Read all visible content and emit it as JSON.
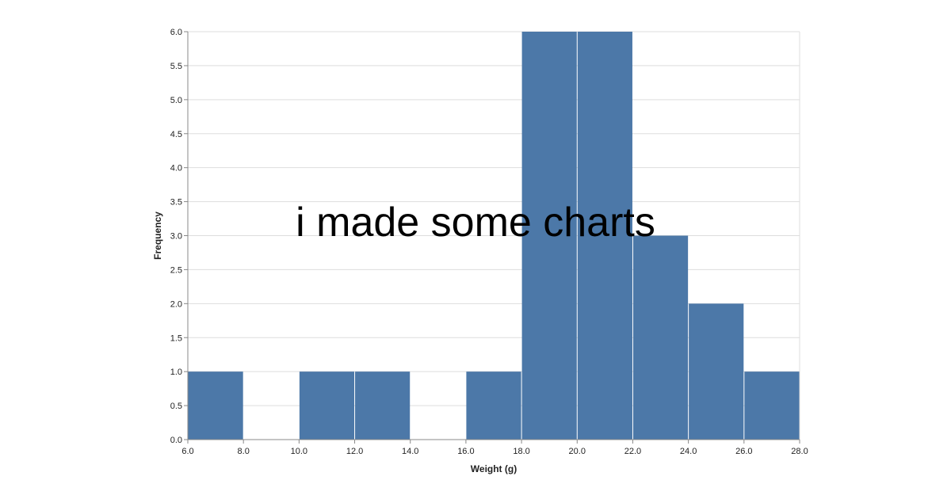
{
  "overlay": {
    "text": "i made some charts"
  },
  "colors": {
    "bar": "#4c78a8",
    "grid": "#dddddd",
    "axis": "#888888",
    "background": "#ffffff"
  },
  "chart_data": {
    "type": "bar",
    "title": "",
    "xlabel": "Weight (g)",
    "ylabel": "Frequency",
    "xlim": [
      6,
      28
    ],
    "ylim": [
      0,
      6
    ],
    "grid": true,
    "x_ticks": [
      "6.0",
      "8.0",
      "10.0",
      "12.0",
      "14.0",
      "16.0",
      "18.0",
      "20.0",
      "22.0",
      "24.0",
      "26.0",
      "28.0"
    ],
    "y_ticks": [
      "0.0",
      "0.5",
      "1.0",
      "1.5",
      "2.0",
      "2.5",
      "3.0",
      "3.5",
      "4.0",
      "4.5",
      "5.0",
      "5.5",
      "6.0"
    ],
    "bins": [
      {
        "x0": 6,
        "x1": 8,
        "count": 1
      },
      {
        "x0": 10,
        "x1": 12,
        "count": 1
      },
      {
        "x0": 12,
        "x1": 14,
        "count": 1
      },
      {
        "x0": 16,
        "x1": 18,
        "count": 1
      },
      {
        "x0": 18,
        "x1": 20,
        "count": 6
      },
      {
        "x0": 20,
        "x1": 22,
        "count": 6
      },
      {
        "x0": 22,
        "x1": 24,
        "count": 3
      },
      {
        "x0": 24,
        "x1": 26,
        "count": 2
      },
      {
        "x0": 26,
        "x1": 28,
        "count": 1
      }
    ]
  }
}
